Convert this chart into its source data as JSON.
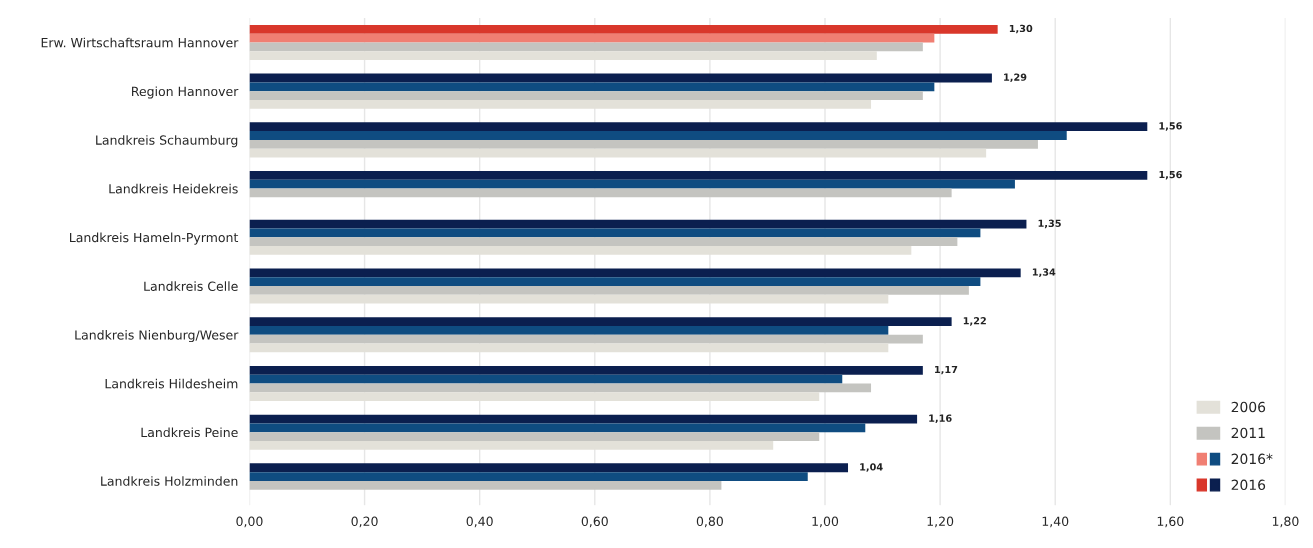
{
  "chart_data": {
    "type": "bar",
    "orientation": "horizontal",
    "categories": [
      "Erw. Wirtschaftsraum Hannover",
      "Region Hannover",
      "Landkreis Schaumburg",
      "Landkreis Heidekreis",
      "Landkreis Hameln-Pyrmont",
      "Landkreis Celle",
      "Landkreis Nienburg/Weser",
      "Landkreis Hildesheim",
      "Landkreis Peine",
      "Landkreis Holzminden"
    ],
    "series": [
      {
        "name": "2016",
        "colors": [
          "#d9372b",
          "#0b1f4f",
          "#0b1f4f",
          "#0b1f4f",
          "#0b1f4f",
          "#0b1f4f",
          "#0b1f4f",
          "#0b1f4f",
          "#0b1f4f",
          "#0b1f4f"
        ],
        "values": [
          1.3,
          1.29,
          1.56,
          1.56,
          1.35,
          1.34,
          1.22,
          1.17,
          1.16,
          1.04
        ],
        "value_labels": [
          "1,30",
          "1,29",
          "1,56",
          "1,56",
          "1,35",
          "1,34",
          "1,22",
          "1,17",
          "1,16",
          "1,04"
        ]
      },
      {
        "name": "2016*",
        "colors": [
          "#f07f73",
          "#0f4c81",
          "#0f4c81",
          "#0f4c81",
          "#0f4c81",
          "#0f4c81",
          "#0f4c81",
          "#0f4c81",
          "#0f4c81",
          "#0f4c81"
        ],
        "values": [
          1.19,
          1.19,
          1.42,
          1.33,
          1.27,
          1.27,
          1.11,
          1.03,
          1.07,
          0.97
        ]
      },
      {
        "name": "2011",
        "color": "#c4c4c0",
        "values": [
          1.17,
          1.17,
          1.37,
          1.22,
          1.23,
          1.25,
          1.17,
          1.08,
          0.99,
          0.82
        ]
      },
      {
        "name": "2006",
        "color": "#e3e1d9",
        "values": [
          1.09,
          1.08,
          1.28,
          null,
          1.15,
          1.11,
          1.11,
          0.99,
          0.91,
          null
        ]
      }
    ],
    "xlim": [
      0,
      1.8
    ],
    "xticks": [
      {
        "value": 0,
        "label": "0,00"
      },
      {
        "value": 0.2,
        "label": "0,20"
      },
      {
        "value": 0.4,
        "label": "0,40"
      },
      {
        "value": 0.6,
        "label": "0,60"
      },
      {
        "value": 0.8,
        "label": "0,80"
      },
      {
        "value": 1.0,
        "label": "1,00"
      },
      {
        "value": 1.2,
        "label": "1,20"
      },
      {
        "value": 1.4,
        "label": "1,40"
      },
      {
        "value": 1.6,
        "label": "1,60"
      },
      {
        "value": 1.8,
        "label": "1,80"
      }
    ],
    "grid": "x",
    "legend": "bottom right"
  }
}
